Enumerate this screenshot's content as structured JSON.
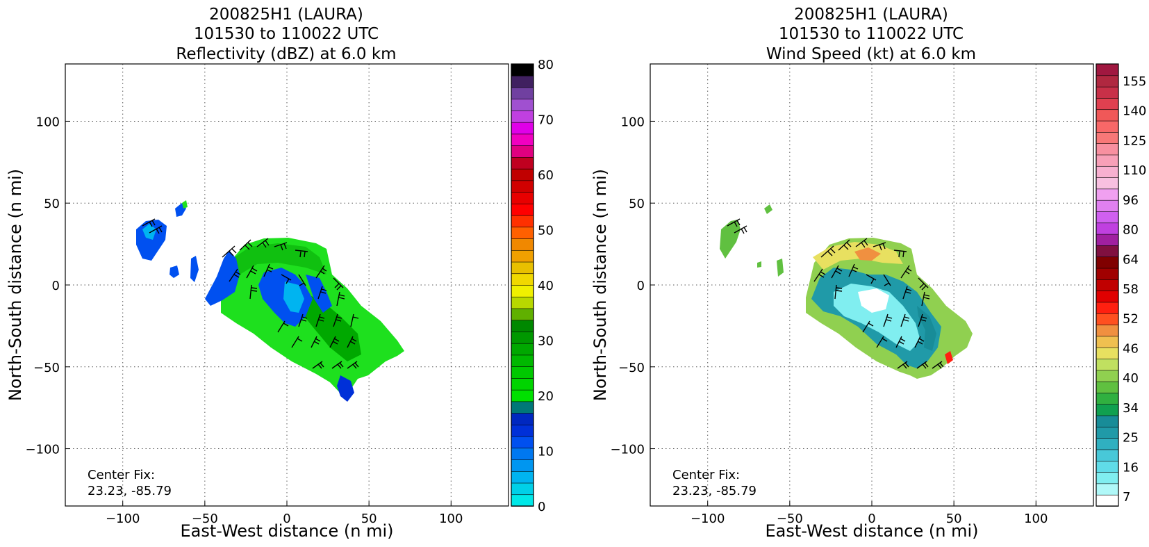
{
  "figure": {
    "panels": [
      {
        "title_lines": [
          "200825H1 (LAURA)",
          "101530 to 110022 UTC",
          "Reflectivity (dBZ) at 6.0 km"
        ],
        "center_fix": [
          "Center Fix:",
          "23.23, -85.79"
        ]
      },
      {
        "title_lines": [
          "200825H1 (LAURA)",
          "101530 to 110022 UTC",
          "Wind Speed (kt) at 6.0 km"
        ],
        "center_fix": [
          "Center Fix:",
          "23.23, -85.79"
        ]
      }
    ]
  },
  "chart_data": [
    {
      "type": "heatmap",
      "title": "200825H1 (LAURA) 101530 to 110022 UTC Reflectivity (dBZ) at 6.0 km",
      "xlabel": "East-West distance (n mi)",
      "ylabel": "North-South distance (n mi)",
      "xlim": [
        -135,
        135
      ],
      "ylim": [
        -135,
        135
      ],
      "xticks": [
        -100,
        -50,
        0,
        50,
        100
      ],
      "yticks": [
        -100,
        -50,
        0,
        50,
        100
      ],
      "xtick_labels": [
        "−100",
        "−50",
        "0",
        "50",
        "100"
      ],
      "ytick_labels": [
        "−100",
        "−50",
        "0",
        "50",
        "100"
      ],
      "grid": true,
      "colorbar": {
        "label_ticks": [
          "0",
          "10",
          "20",
          "30",
          "40",
          "50",
          "60",
          "70",
          "80"
        ],
        "colors": [
          "#00e8e8",
          "#00d0e8",
          "#00b4f0",
          "#0096f0",
          "#0078f0",
          "#0050f0",
          "#0030d8",
          "#0028c0",
          "#007878",
          "#00e000",
          "#00d400",
          "#00c800",
          "#00b800",
          "#00a800",
          "#009800",
          "#008800",
          "#60b000",
          "#b8d800",
          "#f0f000",
          "#f0d800",
          "#e8c000",
          "#f0a000",
          "#f08800",
          "#ff6000",
          "#ff3000",
          "#ff0000",
          "#e80000",
          "#d00000",
          "#c00000",
          "#c00020",
          "#e00080",
          "#f000c0",
          "#e000e8",
          "#c040e0",
          "#a050d0",
          "#7040a0",
          "#402060",
          "#000000"
        ],
        "min": 0,
        "max": 80
      },
      "annotation": "Center Fix: 23.23, -85.79"
    },
    {
      "type": "heatmap",
      "title": "200825H1 (LAURA) 101530 to 110022 UTC Wind Speed (kt) at 6.0 km",
      "xlabel": "East-West distance (n mi)",
      "ylabel": "North-South distance (n mi)",
      "xlim": [
        -135,
        135
      ],
      "ylim": [
        -135,
        135
      ],
      "xticks": [
        -100,
        -50,
        0,
        50,
        100
      ],
      "yticks": [
        -100,
        -50,
        0,
        50,
        100
      ],
      "xtick_labels": [
        "−100",
        "−50",
        "0",
        "50",
        "100"
      ],
      "ytick_labels": [
        "−100",
        "−50",
        "0",
        "50",
        "100"
      ],
      "grid": true,
      "colorbar": {
        "label_ticks": [
          "7",
          "16",
          "25",
          "34",
          "40",
          "46",
          "52",
          "58",
          "64",
          "80",
          "96",
          "110",
          "125",
          "140",
          "155"
        ],
        "colors": [
          "#ffffff",
          "#b0f8f8",
          "#80eef0",
          "#60dce8",
          "#48c8d8",
          "#30b0c0",
          "#209aa8",
          "#188c98",
          "#10a050",
          "#30b040",
          "#60c040",
          "#90d050",
          "#c0e060",
          "#e8e060",
          "#f0c050",
          "#f09040",
          "#ff5020",
          "#ff2010",
          "#e00000",
          "#c00000",
          "#a00000",
          "#800000",
          "#801040",
          "#a020a0",
          "#c040e0",
          "#d060f0",
          "#e080f0",
          "#f0a0f0",
          "#f8c0e0",
          "#f8b0d0",
          "#f8a0b8",
          "#f890a0",
          "#f87878",
          "#f86868",
          "#f05858",
          "#e04050",
          "#c83048",
          "#b02840",
          "#a01840"
        ],
        "min": 0,
        "max": 160
      },
      "annotation": "Center Fix: 23.23, -85.79"
    }
  ]
}
